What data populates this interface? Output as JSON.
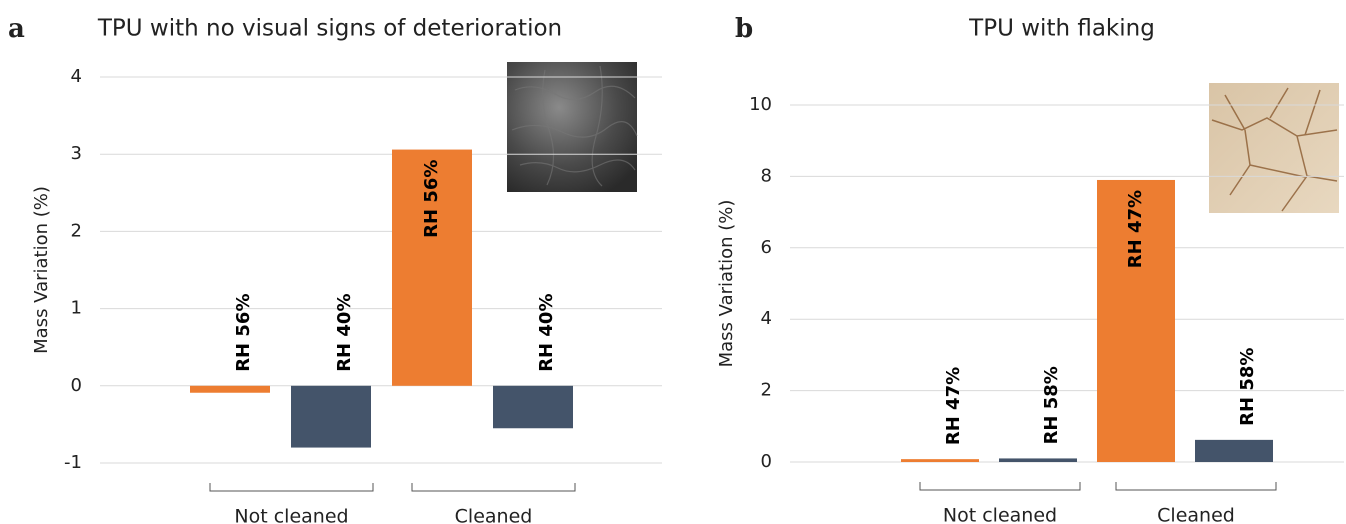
{
  "chart_data": [
    {
      "type": "bar",
      "panel": "a",
      "title": "TPU with no visual signs of deterioration",
      "y_label": "Mass Variation (%)",
      "groups": [
        "Not cleaned",
        "Cleaned"
      ],
      "bar_labels": [
        "RH 56%",
        "RH 40%",
        "RH 56%",
        "RH 40%"
      ],
      "values": [
        -0.09,
        -0.8,
        3.06,
        -0.55
      ],
      "colors": [
        "#ED7D31",
        "#44546A",
        "#ED7D31",
        "#44546A"
      ],
      "ylim": [
        -1,
        4
      ],
      "yticks": [
        -1,
        0,
        1,
        2,
        3,
        4
      ],
      "grid": true
    },
    {
      "type": "bar",
      "panel": "b",
      "title": "TPU with flaking",
      "y_label": "Mass Variation (%)",
      "groups": [
        "Not cleaned",
        "Cleaned"
      ],
      "bar_labels": [
        "RH 47%",
        "RH 58%",
        "RH 47%",
        "RH 58%"
      ],
      "values": [
        0.08,
        0.1,
        7.9,
        0.62
      ],
      "colors": [
        "#ED7D31",
        "#44546A",
        "#ED7D31",
        "#44546A"
      ],
      "ylim": [
        0,
        10
      ],
      "yticks": [
        0,
        2,
        4,
        6,
        8,
        10
      ],
      "grid": true
    }
  ]
}
